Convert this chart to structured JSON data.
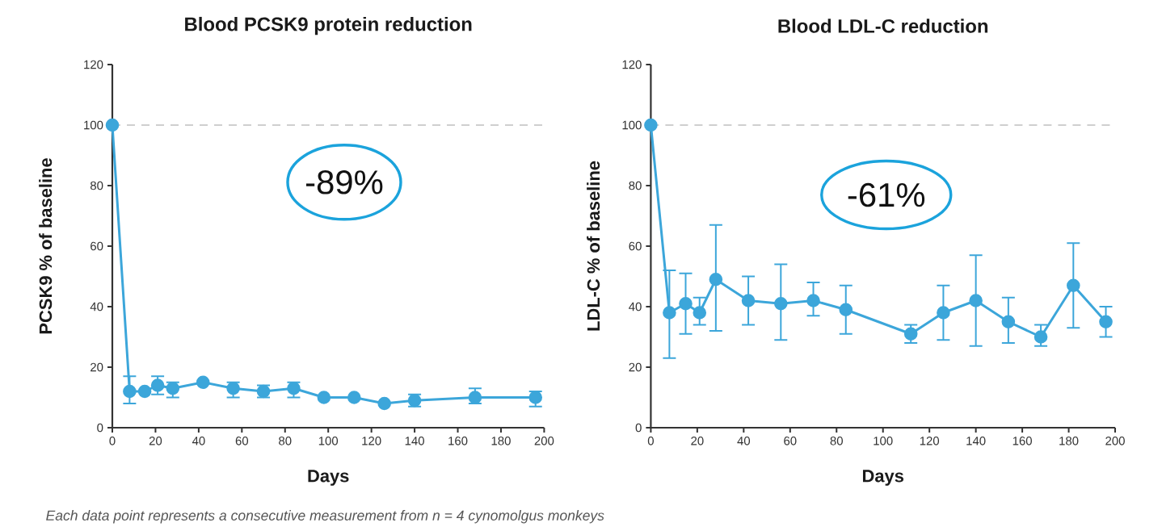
{
  "chart_data": [
    {
      "type": "line",
      "title": "Blood PCSK9 protein reduction",
      "xlabel": "Days",
      "ylabel": "PCSK9 % of baseline",
      "x": [
        0,
        8,
        15,
        21,
        28,
        42,
        56,
        70,
        84,
        98,
        112,
        126,
        140,
        168,
        196
      ],
      "series": [
        {
          "color": "#3ca6da",
          "values": [
            100,
            12,
            12,
            14,
            13,
            15,
            13,
            12,
            13,
            10,
            10,
            8,
            9,
            10,
            10
          ],
          "errors": [
            null,
            [
              8,
              17
            ],
            null,
            [
              11,
              17
            ],
            [
              10,
              15
            ],
            null,
            [
              10,
              15
            ],
            [
              10,
              14
            ],
            [
              10,
              15
            ],
            null,
            null,
            null,
            [
              7,
              11
            ],
            [
              8,
              13
            ],
            [
              7,
              12
            ]
          ]
        }
      ],
      "xlim": [
        0,
        200
      ],
      "xticks": [
        0,
        20,
        40,
        60,
        80,
        100,
        120,
        140,
        160,
        180,
        200
      ],
      "ylim": [
        0,
        120
      ],
      "yticks": [
        0,
        20,
        40,
        60,
        80,
        100,
        120
      ],
      "marker": "circle",
      "line_style": "solid",
      "ref_lines": [
        {
          "axis": "y",
          "value": 100,
          "color": "#cfcfcf",
          "line_style": "dashed"
        }
      ],
      "annotations": [
        "-89%",
        "Each data point represents a consecutive measurement from n = 4 cynomolgus monkeys"
      ]
    },
    {
      "type": "line",
      "title": "Blood LDL-C reduction",
      "xlabel": "Days",
      "ylabel": "LDL-C % of baseline",
      "x": [
        0,
        8,
        15,
        21,
        28,
        42,
        56,
        70,
        84,
        112,
        126,
        140,
        154,
        168,
        182,
        196
      ],
      "series": [
        {
          "color": "#3ca6da",
          "values": [
            100,
            38,
            41,
            38,
            49,
            42,
            41,
            42,
            39,
            31,
            38,
            42,
            35,
            30,
            47,
            35
          ],
          "errors": [
            null,
            [
              23,
              52
            ],
            [
              31,
              51
            ],
            [
              34,
              43
            ],
            [
              32,
              67
            ],
            [
              34,
              50
            ],
            [
              29,
              54
            ],
            [
              37,
              48
            ],
            [
              31,
              47
            ],
            [
              28,
              34
            ],
            [
              29,
              47
            ],
            [
              27,
              57
            ],
            [
              28,
              43
            ],
            [
              27,
              34
            ],
            [
              33,
              61
            ],
            [
              30,
              40
            ]
          ]
        }
      ],
      "xlim": [
        0,
        200
      ],
      "xticks": [
        0,
        20,
        40,
        60,
        80,
        100,
        120,
        140,
        160,
        180,
        200
      ],
      "ylim": [
        0,
        120
      ],
      "yticks": [
        0,
        20,
        40,
        60,
        80,
        100,
        120
      ],
      "marker": "circle",
      "line_style": "solid",
      "ref_lines": [
        {
          "axis": "y",
          "value": 100,
          "color": "#cfcfcf",
          "line_style": "dashed"
        }
      ],
      "annotations": [
        "-61%"
      ]
    }
  ]
}
